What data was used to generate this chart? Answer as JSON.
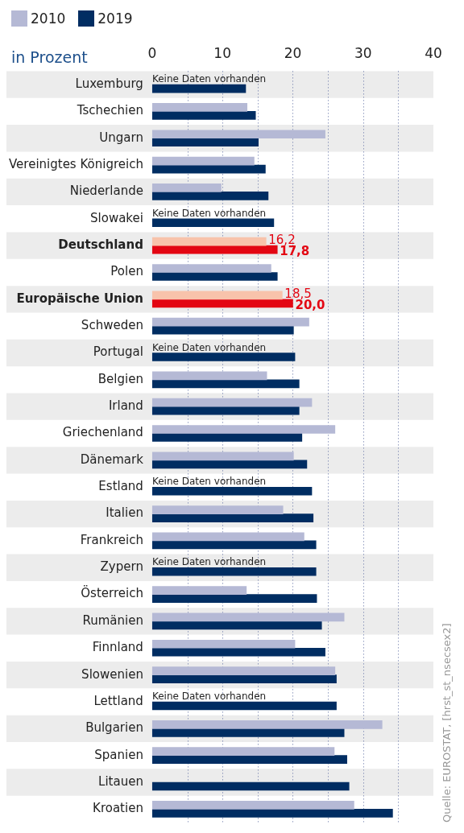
{
  "chart_data": {
    "type": "bar",
    "orientation": "horizontal",
    "xlabel": "in Prozent",
    "legend": "top left",
    "grid": "x",
    "categories": [
      "Luxemburg",
      "Tschechien",
      "Ungarn",
      "Vereinigtes Königreich",
      "Niederlande",
      "Slowakei",
      "Deutschland",
      "Polen",
      "Europäische Union",
      "Schweden",
      "Portugal",
      "Belgien",
      "Irland",
      "Griechenland",
      "Dänemark",
      "Estland",
      "Italien",
      "Frankreich",
      "Zypern",
      "Österreich",
      "Rumänien",
      "Finnland",
      "Slowenien",
      "Lettland",
      "Bulgarien",
      "Spanien",
      "Litauen",
      "Kroatien"
    ],
    "xlim": [
      0,
      40
    ],
    "xticks": [
      0,
      {
        "value": 5,
        "label": null
      },
      10,
      {
        "value": 15,
        "label": null
      },
      20,
      {
        "value": 25,
        "label": null
      },
      30,
      {
        "value": 35,
        "label": null
      },
      40
    ],
    "series": [
      {
        "name": "2010",
        "color": "#b5b9d5",
        "colors": [
          "#b5b9d5",
          "#b5b9d5",
          "#b5b9d5",
          "#b5b9d5",
          "#b5b9d5",
          "#b5b9d5",
          "#f8c3ab",
          "#b5b9d5",
          "#f8c3ab",
          "#b5b9d5",
          "#b5b9d5",
          "#b5b9d5",
          "#b5b9d5",
          "#b5b9d5",
          "#b5b9d5",
          "#b5b9d5",
          "#b5b9d5",
          "#b5b9d5",
          "#b5b9d5",
          "#b5b9d5",
          "#b5b9d5",
          "#b5b9d5",
          "#b5b9d5",
          "#b5b9d5",
          "#b5b9d5",
          "#b5b9d5",
          "#b5b9d5",
          "#b5b9d5"
        ],
        "values": [
          null,
          13.5,
          24.6,
          14.5,
          9.8,
          null,
          16.2,
          16.9,
          18.5,
          22.3,
          null,
          16.3,
          22.7,
          26.0,
          20.1,
          null,
          18.6,
          21.6,
          null,
          13.4,
          27.3,
          20.3,
          26.0,
          null,
          32.7,
          25.9,
          null,
          28.7
        ],
        "value_labels": [
          "Keine Daten vorhanden",
          null,
          null,
          null,
          null,
          "Keine Daten vorhanden",
          "16,2",
          null,
          "18,5",
          null,
          "Keine Daten vorhanden",
          null,
          null,
          null,
          null,
          "Keine Daten vorhanden",
          null,
          null,
          "Keine Daten vorhanden",
          null,
          null,
          null,
          null,
          "Keine Daten vorhanden",
          null,
          null,
          null,
          null
        ]
      },
      {
        "name": "2019",
        "color": "#002d62",
        "colors": [
          "#002d62",
          "#002d62",
          "#002d62",
          "#002d62",
          "#002d62",
          "#002d62",
          "#e30613",
          "#002d62",
          "#e30613",
          "#002d62",
          "#002d62",
          "#002d62",
          "#002d62",
          "#002d62",
          "#002d62",
          "#002d62",
          "#002d62",
          "#002d62",
          "#002d62",
          "#002d62",
          "#002d62",
          "#002d62",
          "#002d62",
          "#002d62",
          "#002d62",
          "#002d62",
          "#002d62",
          "#002d62"
        ],
        "values": [
          13.3,
          14.7,
          15.1,
          16.1,
          16.5,
          17.3,
          17.8,
          17.8,
          20.0,
          20.1,
          20.3,
          20.9,
          20.9,
          21.3,
          22.0,
          22.7,
          22.9,
          23.3,
          23.3,
          23.4,
          24.1,
          24.6,
          26.2,
          26.2,
          27.3,
          27.7,
          28.0,
          34.2
        ],
        "value_labels": [
          null,
          null,
          null,
          null,
          null,
          null,
          "17,8",
          null,
          "20,0",
          null,
          null,
          null,
          null,
          null,
          null,
          null,
          null,
          null,
          null,
          null,
          null,
          null,
          null,
          null,
          null,
          null,
          null,
          null
        ]
      }
    ],
    "annotations": [
      "Quelle: EUROSTAT, [hrst_st_nsecsex2]"
    ]
  }
}
